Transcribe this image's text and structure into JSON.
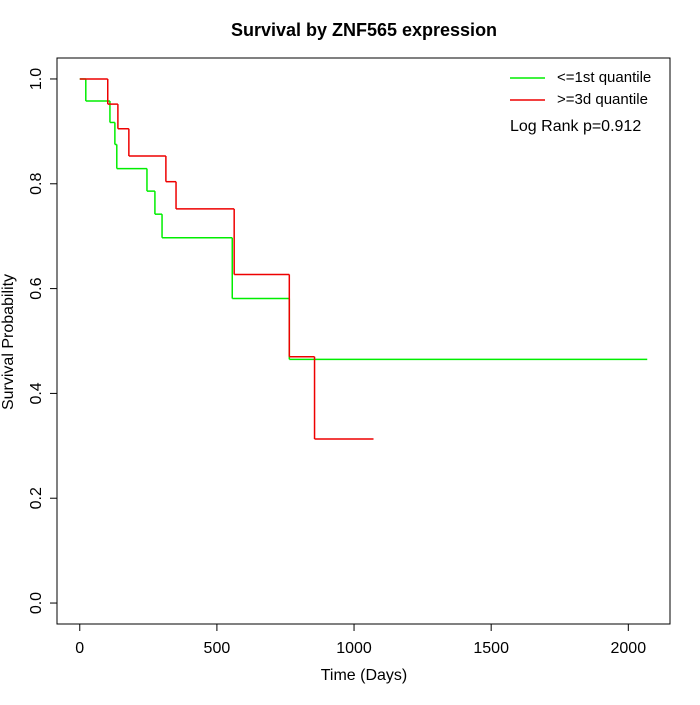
{
  "chart_data": {
    "type": "step",
    "title": "Survival by ZNF565 expression",
    "x_label": "Time (Days)",
    "y_label": "Survival Probability",
    "annotation": "Log Rank p=0.912",
    "legend": "top-right",
    "xlim": [
      -83,
      2152
    ],
    "ylim": [
      -0.04,
      1.04
    ],
    "xticks": [
      0,
      500,
      1000,
      1500,
      2000
    ],
    "yticks": [
      {
        "value": 0,
        "label": "0.0"
      },
      0.2,
      0.4,
      0.6,
      0.8,
      {
        "value": 1,
        "label": "1.0"
      }
    ],
    "series": [
      {
        "name": "<=1st quantile",
        "color": "#00ee00",
        "x": [
          0,
          22,
          110,
          128,
          135,
          245,
          274,
          300,
          556,
          764,
          2069
        ],
        "values": [
          1,
          0.958,
          0.917,
          0.875,
          0.829,
          0.786,
          0.742,
          0.697,
          0.581,
          0.465,
          0.465
        ]
      },
      {
        "name": ">=3d quantile",
        "color": "#ee0000",
        "x": [
          0,
          102,
          139,
          179,
          314,
          351,
          563,
          764,
          856,
          1071
        ],
        "values": [
          1,
          0.952,
          0.905,
          0.853,
          0.804,
          0.752,
          0.627,
          0.47,
          0.313,
          0.313
        ]
      }
    ]
  }
}
